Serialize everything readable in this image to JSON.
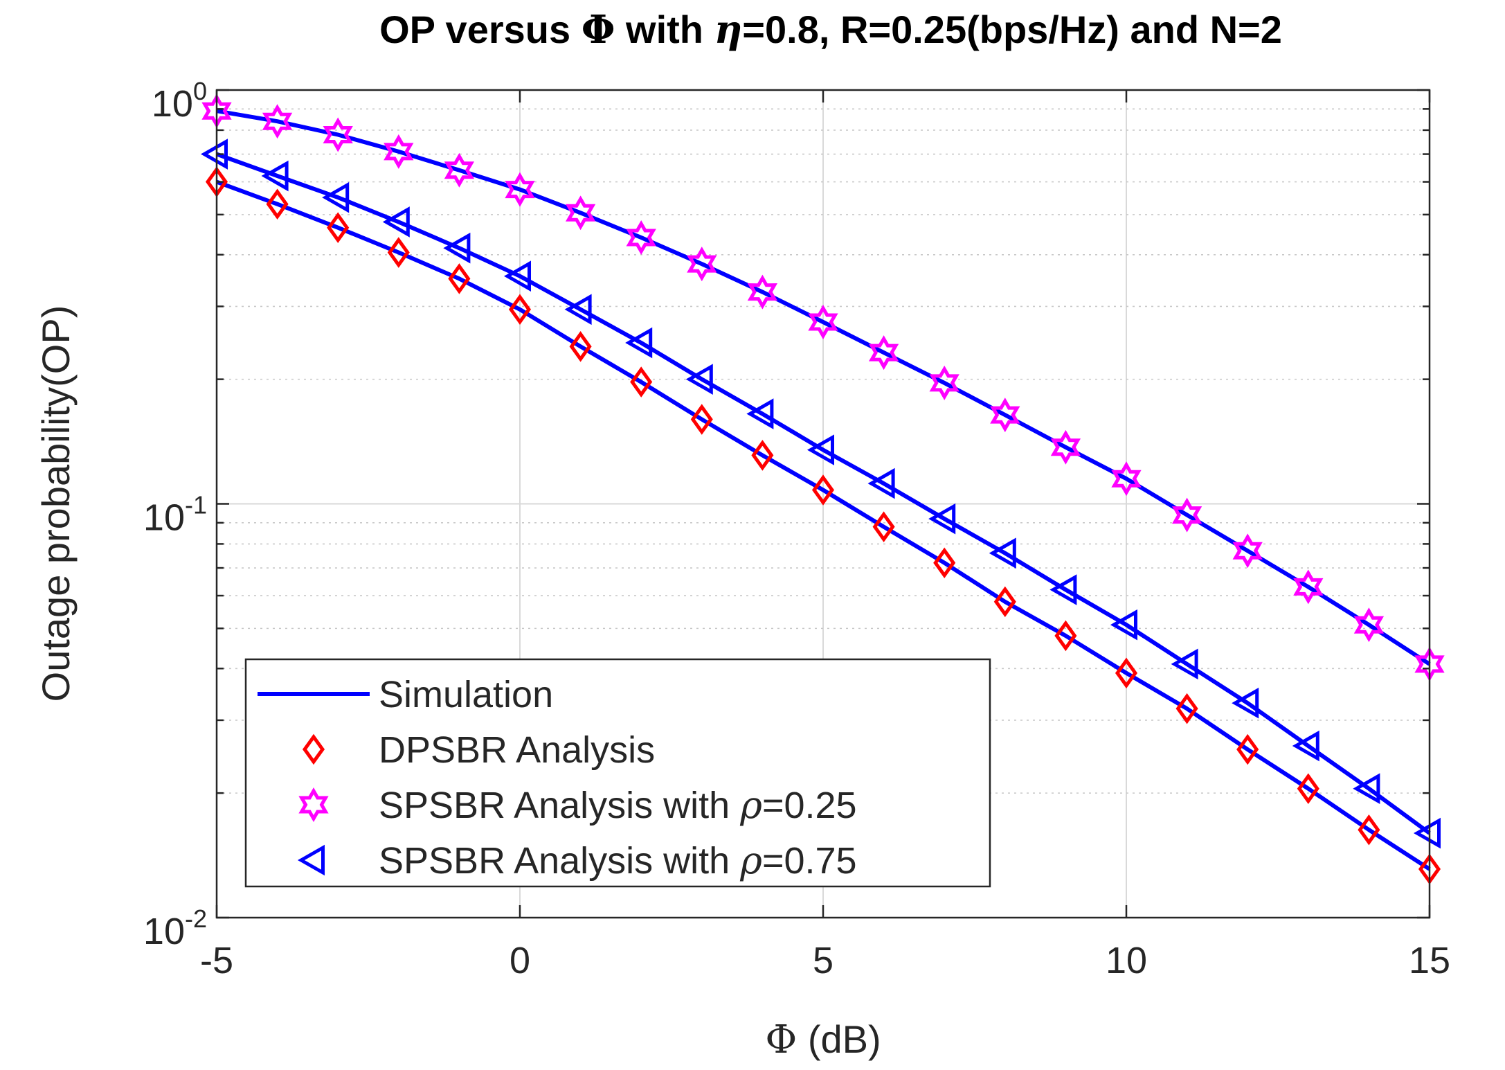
{
  "chart_data": {
    "type": "line",
    "title": {
      "prefix": "OP versus ",
      "phi": "Φ",
      "mid": " with ",
      "eta": "η",
      "suffix": "=0.8, R=0.25(bps/Hz) and N=2"
    },
    "xlabel": {
      "symbol": "Φ",
      "text": " (dB)"
    },
    "ylabel": "Outage probability(OP)",
    "xlim": [
      -5,
      15
    ],
    "ylim": [
      0.01,
      1
    ],
    "yscale": "log",
    "grid": true,
    "xticks": [
      -5,
      0,
      5,
      10,
      15
    ],
    "xtick_labels": [
      "-5",
      "0",
      "5",
      "10",
      "15"
    ],
    "yticks": [
      {
        "base": "10",
        "exp": "0",
        "value": 1
      },
      {
        "base": "10",
        "exp": "-1",
        "value": 0.1
      },
      {
        "base": "10",
        "exp": "-2",
        "value": 0.01
      }
    ],
    "x": [
      -5,
      -4,
      -3,
      -2,
      -1,
      0,
      1,
      2,
      3,
      4,
      5,
      6,
      7,
      8,
      9,
      10,
      11,
      12,
      13,
      14,
      15
    ],
    "legend_position": "bottom-left",
    "legend": [
      {
        "label": "Simulation",
        "marker": "line"
      },
      {
        "label": "DPSBR Analysis",
        "marker": "diamond"
      },
      {
        "label_prefix": "SPSBR Analysis with ",
        "symbol": "ρ",
        "label_suffix": "=0.25",
        "marker": "hexagram"
      },
      {
        "label_prefix": "SPSBR Analysis with ",
        "symbol": "ρ",
        "label_suffix": "=0.75",
        "marker": "triangle-left"
      }
    ],
    "series": [
      {
        "name": "SPSBR Analysis with ρ=0.25",
        "marker": "hexagram",
        "color": "#ff00ff",
        "values": [
          0.89,
          0.84,
          0.78,
          0.71,
          0.64,
          0.575,
          0.505,
          0.44,
          0.38,
          0.325,
          0.275,
          0.232,
          0.196,
          0.164,
          0.137,
          0.115,
          0.094,
          0.077,
          0.063,
          0.051,
          0.041
        ]
      },
      {
        "name": "SPSBR Analysis with ρ=0.75",
        "marker": "triangle-left",
        "color": "#0000ff",
        "values": [
          0.7,
          0.62,
          0.55,
          0.48,
          0.415,
          0.355,
          0.295,
          0.245,
          0.2,
          0.165,
          0.135,
          0.112,
          0.092,
          0.076,
          0.062,
          0.051,
          0.041,
          0.033,
          0.026,
          0.0205,
          0.016
        ]
      },
      {
        "name": "DPSBR Analysis",
        "marker": "diamond",
        "color": "#ff0000",
        "values": [
          0.6,
          0.53,
          0.465,
          0.405,
          0.35,
          0.295,
          0.24,
          0.197,
          0.16,
          0.131,
          0.108,
          0.088,
          0.072,
          0.058,
          0.048,
          0.039,
          0.032,
          0.0255,
          0.0205,
          0.0163,
          0.0131
        ]
      }
    ],
    "simulation_line_color": "#0000ff"
  }
}
